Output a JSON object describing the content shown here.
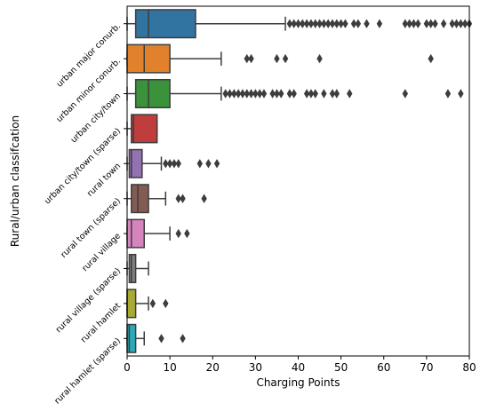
{
  "chart_data": {
    "type": "boxplot",
    "orientation": "horizontal",
    "title": "",
    "xlabel": "Charging Points",
    "ylabel": "Rural/urban classifcation",
    "xlim": [
      0,
      80
    ],
    "xticks": [
      0,
      10,
      20,
      30,
      40,
      50,
      60,
      70,
      80
    ],
    "grid": false,
    "categories": [
      "urban major conurb.",
      "urban minor conurb.",
      "urban city/town",
      "urban city/town (sparse)",
      "rural town",
      "rural town (sparse)",
      "rural village",
      "rural village (sparse)",
      "rural hamlet",
      "rural hamlet (sparse)"
    ],
    "colors": [
      "#3274a1",
      "#e1812c",
      "#3a923a",
      "#c03d3e",
      "#9372b2",
      "#845b53",
      "#d684bd",
      "#7f7f7f",
      "#a9aa35",
      "#2ea9b8"
    ],
    "boxes": [
      {
        "q1": 2,
        "median": 5,
        "q3": 16,
        "whisker_low": 0,
        "whisker_high": 37,
        "outliers": [
          38,
          39,
          40,
          41,
          42,
          43,
          44,
          45,
          46,
          47,
          48,
          49,
          50,
          51,
          53,
          54,
          56,
          59,
          65,
          66,
          67,
          68,
          70,
          71,
          72,
          74,
          76,
          77,
          78,
          79,
          80
        ]
      },
      {
        "q1": 0,
        "median": 4,
        "q3": 10,
        "whisker_low": 0,
        "whisker_high": 22,
        "outliers": [
          28,
          29,
          35,
          37,
          45,
          71
        ]
      },
      {
        "q1": 2,
        "median": 5,
        "q3": 10,
        "whisker_low": 0,
        "whisker_high": 22,
        "outliers": [
          23,
          24,
          25,
          26,
          27,
          28,
          29,
          30,
          31,
          32,
          34,
          35,
          36,
          38,
          39,
          42,
          43,
          44,
          46,
          48,
          49,
          52,
          65,
          75,
          78
        ]
      },
      {
        "q1": 1,
        "median": 1.5,
        "q3": 7,
        "whisker_low": 0,
        "whisker_high": 7,
        "outliers": []
      },
      {
        "q1": 0.5,
        "median": 1,
        "q3": 3.5,
        "whisker_low": 0,
        "whisker_high": 8,
        "outliers": [
          9,
          10,
          11,
          12,
          17,
          19,
          21
        ]
      },
      {
        "q1": 1,
        "median": 2.5,
        "q3": 5,
        "whisker_low": 0,
        "whisker_high": 9,
        "outliers": [
          12,
          13,
          18
        ]
      },
      {
        "q1": 0,
        "median": 1,
        "q3": 4,
        "whisker_low": 0,
        "whisker_high": 10,
        "outliers": [
          12,
          14
        ]
      },
      {
        "q1": 0.5,
        "median": 1,
        "q3": 2,
        "whisker_low": 0,
        "whisker_high": 5,
        "outliers": []
      },
      {
        "q1": 0,
        "median": 0,
        "q3": 2,
        "whisker_low": 0,
        "whisker_high": 5,
        "outliers": [
          6,
          9
        ]
      },
      {
        "q1": 0,
        "median": 0.5,
        "q3": 2,
        "whisker_low": 0,
        "whisker_high": 4,
        "outliers": [
          8,
          13
        ]
      }
    ]
  }
}
